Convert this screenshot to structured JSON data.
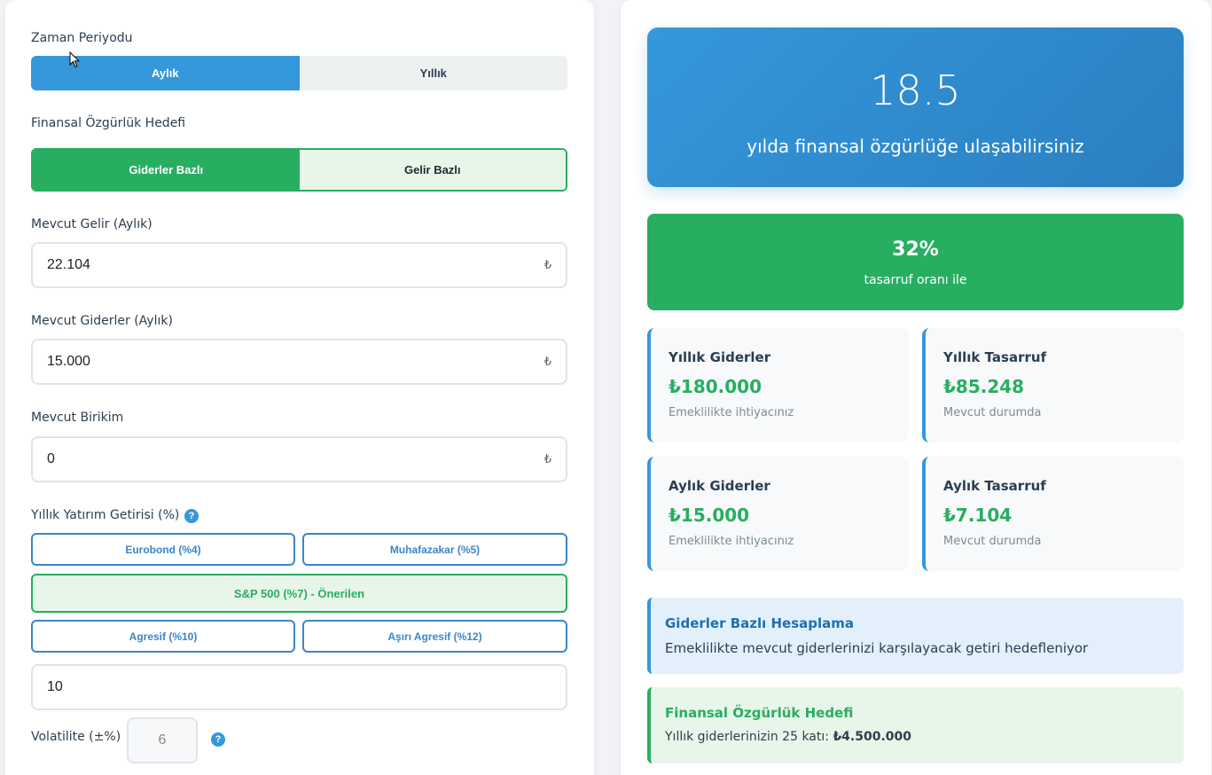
{
  "left": {
    "period": {
      "label": "Zaman Periyodu",
      "options": [
        "Aylık",
        "Yıllık"
      ],
      "selected": "Aylık"
    },
    "goal": {
      "label": "Finansal Özgürlük Hedefi",
      "options": [
        "Giderler Bazlı",
        "Gelir Bazlı"
      ],
      "selected": "Giderler Bazlı"
    },
    "income": {
      "label": "Mevcut Gelir (Aylık)",
      "value": "22.104",
      "currency": "₺"
    },
    "expenses": {
      "label": "Mevcut Giderler (Aylık)",
      "value": "15.000",
      "currency": "₺"
    },
    "savings": {
      "label": "Mevcut Birikim",
      "value": "0",
      "currency": "₺"
    },
    "return": {
      "label": "Yıllık Yatırım Getirisi (%)",
      "help": "?",
      "presets": [
        "Eurobond (%4)",
        "Muhafazakar (%5)",
        "S&P 500 (%7) - Önerilen",
        "Agresif (%10)",
        "Aşırı Agresif (%12)"
      ],
      "value": "10"
    },
    "volatility": {
      "label": "Volatilite (±%)",
      "value": "6",
      "help": "?"
    }
  },
  "right": {
    "hero": {
      "years": "18.5",
      "text": "yılda finansal özgürlüğe ulaşabilirsiniz"
    },
    "rate": {
      "value": "32%",
      "text": "tasarruf oranı ile"
    },
    "stats": [
      {
        "title": "Yıllık Giderler",
        "value": "₺180.000",
        "sub": "Emeklilikte ihtiyacınız"
      },
      {
        "title": "Yıllık Tasarruf",
        "value": "₺85.248",
        "sub": "Mevcut durumda"
      },
      {
        "title": "Aylık Giderler",
        "value": "₺15.000",
        "sub": "Emeklilikte ihtiyacınız"
      },
      {
        "title": "Aylık Tasarruf",
        "value": "₺7.104",
        "sub": "Mevcut durumda"
      }
    ],
    "info_blue": {
      "title": "Giderler Bazlı Hesaplama",
      "body": "Emeklilikte mevcut giderlerinizi karşılayacak getiri hedefleniyor"
    },
    "info_green": {
      "title": "Finansal Özgürlük Hedefi",
      "body_prefix": "Yıllık giderlerinizin 25 katı: ",
      "body_value": "₺4.500.000"
    }
  },
  "colors": {
    "primary": "#3498db",
    "success": "#27ae60",
    "text": "#2c3e50"
  },
  "icons": {
    "help": "question-circle-icon",
    "cursor": "mouse-pointer-icon"
  }
}
